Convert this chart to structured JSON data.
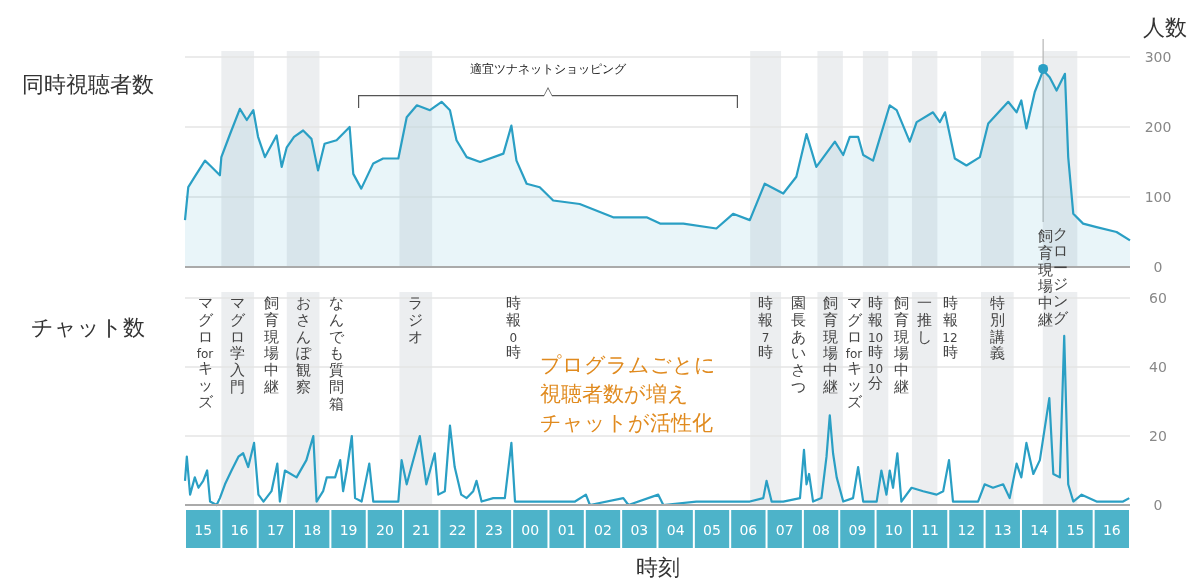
{
  "chart_data": [
    {
      "type": "area",
      "title": "同時視聴者数",
      "ylabel": "人数",
      "xlim": [
        15,
        41
      ],
      "ylim": [
        0,
        300
      ],
      "yticks": [
        0,
        100,
        200,
        300
      ],
      "grid": "y",
      "tick_labels": "y",
      "series": [
        {
          "color": "#2a9fc4",
          "x": [
            15.0,
            15.09,
            15.27,
            15.55,
            15.69,
            15.96,
            16.0,
            16.24,
            16.51,
            16.7,
            16.88,
            17.01,
            17.2,
            17.52,
            17.66,
            17.8,
            18.0,
            18.25,
            18.48,
            18.66,
            18.84,
            19.17,
            19.53,
            19.63,
            19.85,
            20.18,
            20.45,
            20.87,
            21.1,
            21.38,
            21.74,
            22.06,
            22.29,
            22.47,
            22.75,
            23.12,
            23.76,
            23.98,
            24.12,
            24.4,
            24.76,
            25.13,
            25.86,
            26.78,
            27.7,
            28.07,
            28.71,
            29.62,
            30.08,
            30.54,
            30.95,
            31.46,
            31.82,
            32.1,
            32.37,
            32.88,
            33.11,
            33.29,
            33.52,
            33.66,
            33.93,
            34.39,
            34.58,
            34.94,
            35.13,
            35.58,
            35.77,
            35.91,
            36.18,
            36.5,
            36.87,
            37.1,
            37.65,
            37.88,
            38.01,
            38.15,
            38.38,
            38.61,
            38.79,
            38.98,
            39.21,
            39.3,
            39.44,
            39.71,
            40.08,
            40.63,
            41.0
          ],
          "values": [
            67,
            114,
            129,
            152,
            145,
            131,
            157,
            190,
            226,
            210,
            224,
            186,
            157,
            188,
            143,
            171,
            186,
            195,
            183,
            138,
            176,
            181,
            200,
            133,
            112,
            148,
            155,
            155,
            214,
            231,
            224,
            236,
            224,
            181,
            157,
            150,
            162,
            202,
            152,
            119,
            114,
            95,
            90,
            71,
            71,
            62,
            62,
            55,
            76,
            67,
            119,
            105,
            129,
            190,
            143,
            179,
            160,
            186,
            186,
            160,
            152,
            231,
            224,
            179,
            207,
            221,
            207,
            221,
            155,
            145,
            157,
            205,
            236,
            221,
            238,
            198,
            250,
            281,
            271,
            252,
            276,
            157,
            76,
            62,
            57,
            50,
            38
          ]
        },
        {
          "type": "scatter",
          "color": "#2a9fc4",
          "x": [
            38.61
          ],
          "values": [
            283
          ]
        }
      ],
      "bands": [
        {
          "axis": "x",
          "from": 16.0,
          "to": 16.9,
          "color": "#eceef0"
        },
        {
          "axis": "x",
          "from": 17.8,
          "to": 18.7,
          "color": "#eceef0"
        },
        {
          "axis": "x",
          "from": 20.9,
          "to": 21.8,
          "color": "#eceef0"
        },
        {
          "axis": "x",
          "from": 30.55,
          "to": 31.4,
          "color": "#eceef0"
        },
        {
          "axis": "x",
          "from": 32.4,
          "to": 33.1,
          "color": "#eceef0"
        },
        {
          "axis": "x",
          "from": 33.65,
          "to": 34.35,
          "color": "#eceef0"
        },
        {
          "axis": "x",
          "from": 35.0,
          "to": 35.7,
          "color": "#eceef0"
        },
        {
          "axis": "x",
          "from": 36.9,
          "to": 37.8,
          "color": "#eceef0"
        },
        {
          "axis": "x",
          "from": 38.6,
          "to": 39.55,
          "color": "#eceef0",
          "label": "クロージング"
        }
      ],
      "ref_lines": [
        {
          "axis": "x",
          "value": 38.61,
          "color": "#b5b5b5"
        }
      ],
      "annotations": [
        "適宜ツナネットショッピング",
        "飼育現場中継"
      ]
    },
    {
      "type": "line",
      "title": "チャット数",
      "xlabel": "時刻",
      "xlim": [
        15,
        41
      ],
      "ylim": [
        0,
        60
      ],
      "yticks": [
        0,
        20,
        40,
        60
      ],
      "grid": "y",
      "xticks": [
        {
          "value": 15.5,
          "label": "15"
        },
        {
          "value": 16.5,
          "label": "16"
        },
        {
          "value": 17.5,
          "label": "17"
        },
        {
          "value": 18.5,
          "label": "18"
        },
        {
          "value": 19.5,
          "label": "19"
        },
        {
          "value": 20.5,
          "label": "20"
        },
        {
          "value": 21.5,
          "label": "21"
        },
        {
          "value": 22.5,
          "label": "22"
        },
        {
          "value": 23.5,
          "label": "23"
        },
        {
          "value": 24.5,
          "label": "00"
        },
        {
          "value": 25.5,
          "label": "01"
        },
        {
          "value": 26.5,
          "label": "02"
        },
        {
          "value": 27.5,
          "label": "03"
        },
        {
          "value": 28.5,
          "label": "04"
        },
        {
          "value": 29.5,
          "label": "05"
        },
        {
          "value": 30.5,
          "label": "06"
        },
        {
          "value": 31.5,
          "label": "07"
        },
        {
          "value": 32.5,
          "label": "08"
        },
        {
          "value": 33.5,
          "label": "09"
        },
        {
          "value": 34.5,
          "label": "10"
        },
        {
          "value": 35.5,
          "label": "11"
        },
        {
          "value": 36.5,
          "label": "12"
        },
        {
          "value": 37.5,
          "label": "13"
        },
        {
          "value": 38.5,
          "label": "14"
        },
        {
          "value": 39.5,
          "label": "15"
        },
        {
          "value": 40.5,
          "label": "16"
        }
      ],
      "series": [
        {
          "color": "#2a9fc4",
          "x": [
            15.0,
            15.05,
            15.14,
            15.27,
            15.37,
            15.5,
            15.61,
            15.69,
            15.87,
            15.96,
            16.1,
            16.28,
            16.47,
            16.6,
            16.74,
            16.9,
            17.02,
            17.16,
            17.38,
            17.54,
            17.61,
            17.75,
            18.07,
            18.34,
            18.53,
            18.62,
            18.8,
            18.9,
            19.13,
            19.27,
            19.35,
            19.45,
            19.59,
            19.68,
            19.86,
            20.07,
            20.18,
            20.45,
            20.87,
            20.96,
            21.1,
            21.46,
            21.64,
            21.87,
            21.97,
            22.15,
            22.29,
            22.42,
            22.6,
            22.75,
            22.93,
            23.02,
            23.16,
            23.48,
            23.8,
            23.98,
            24.08,
            24.67,
            24.95,
            25.73,
            26.03,
            26.14,
            27.06,
            27.2,
            28.02,
            28.16,
            29.07,
            29.49,
            30.08,
            30.54,
            30.91,
            31.0,
            31.14,
            31.46,
            31.92,
            32.03,
            32.1,
            32.17,
            32.28,
            32.51,
            32.65,
            32.74,
            32.83,
            32.93,
            33.11,
            33.38,
            33.52,
            33.66,
            34.03,
            34.16,
            34.3,
            34.39,
            34.48,
            34.6,
            34.71,
            34.99,
            35.31,
            35.68,
            35.86,
            36.02,
            36.13,
            36.5,
            36.82,
            37.0,
            37.23,
            37.51,
            37.69,
            37.88,
            38.01,
            38.15,
            38.34,
            38.52,
            38.78,
            38.89,
            39.07,
            39.19,
            39.3,
            39.44,
            39.67,
            40.08,
            40.81,
            40.98
          ],
          "values": [
            7,
            14,
            3,
            8,
            5,
            7,
            10,
            1,
            0,
            2,
            6,
            10,
            14,
            15,
            11,
            18,
            3,
            1,
            4,
            12,
            1,
            10,
            8,
            13,
            20,
            1,
            4,
            8,
            8,
            13,
            4,
            10,
            20,
            2,
            1,
            12,
            1,
            1,
            1,
            13,
            6,
            20,
            6,
            15,
            3,
            4,
            23,
            11,
            3,
            2,
            4,
            7,
            1,
            2,
            2,
            18,
            1,
            1,
            1,
            1,
            3,
            0,
            2,
            0,
            3,
            0,
            1,
            1,
            1,
            1,
            2,
            7,
            1,
            1,
            2,
            16,
            6,
            9,
            1,
            2,
            14,
            26,
            15,
            8,
            1,
            2,
            11,
            1,
            1,
            10,
            3,
            10,
            5,
            15,
            1,
            5,
            4,
            3,
            4,
            13,
            1,
            1,
            1,
            6,
            5,
            6,
            2,
            12,
            8,
            18,
            9,
            13,
            31,
            9,
            8,
            49,
            6,
            1,
            3,
            1,
            1,
            2
          ]
        }
      ],
      "bands": [
        {
          "axis": "x",
          "from": 16.0,
          "to": 16.9,
          "color": "#eceef0",
          "label": "マグロ学入門"
        },
        {
          "axis": "x",
          "from": 17.8,
          "to": 18.7,
          "color": "#eceef0",
          "label": "おさんぽ観察"
        },
        {
          "axis": "x",
          "from": 20.9,
          "to": 21.8,
          "color": "#eceef0",
          "label": "ラジオ"
        },
        {
          "axis": "x",
          "from": 30.55,
          "to": 31.4,
          "color": "#eceef0",
          "label": "時報7時"
        },
        {
          "axis": "x",
          "from": 32.4,
          "to": 33.1,
          "color": "#eceef0",
          "label": "飼育現場中継"
        },
        {
          "axis": "x",
          "from": 33.65,
          "to": 34.35,
          "color": "#eceef0",
          "label": "時報10時10分"
        },
        {
          "axis": "x",
          "from": 35.0,
          "to": 35.7,
          "color": "#eceef0",
          "label": "一推し"
        },
        {
          "axis": "x",
          "from": 36.9,
          "to": 37.8,
          "color": "#eceef0",
          "label": "特別講義"
        },
        {
          "axis": "x",
          "from": 38.6,
          "to": 39.55,
          "color": "#eceef0"
        }
      ],
      "annotations": [
        "マグロ forキッズ",
        "飼育現場中継",
        "なんでも質問箱",
        "時報0時",
        "園長あいさつ",
        "マグロforキッズ",
        "飼育現場中継",
        "時報12時",
        "プログラムごとに",
        "視聴者数が増え",
        "チャットが活性化"
      ]
    }
  ]
}
